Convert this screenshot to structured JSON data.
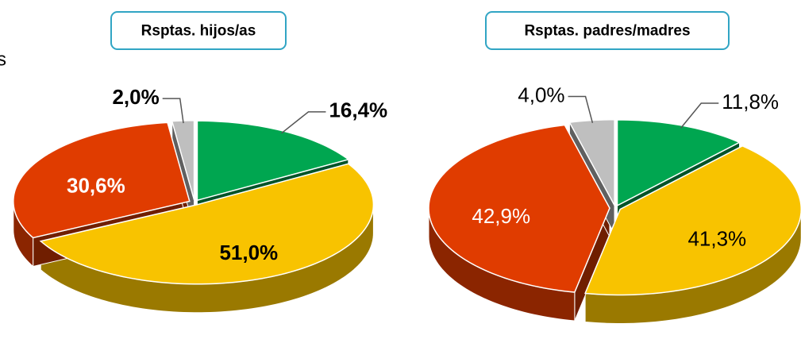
{
  "chart_data": [
    {
      "type": "pie",
      "title": "Rsptas. hijos/as",
      "annotation": "s",
      "label_bold": true,
      "categories": [
        null,
        null,
        null,
        null
      ],
      "values": [
        16.4,
        51.0,
        30.6,
        2.0
      ],
      "value_labels": [
        "16,4%",
        "51,0%",
        "30,6%",
        "2,0%"
      ],
      "colors": [
        "#00a650",
        "#f8c300",
        "#e03c00",
        "#bfbfbf"
      ]
    },
    {
      "type": "pie",
      "title": "Rsptas. padres/madres",
      "label_bold": false,
      "categories": [
        null,
        null,
        null,
        null
      ],
      "values": [
        11.8,
        41.3,
        42.9,
        4.0
      ],
      "value_labels": [
        "11,8%",
        "41,3%",
        "42,9%",
        "4,0%"
      ],
      "colors": [
        "#00a650",
        "#f8c300",
        "#e03c00",
        "#bfbfbf"
      ]
    }
  ]
}
